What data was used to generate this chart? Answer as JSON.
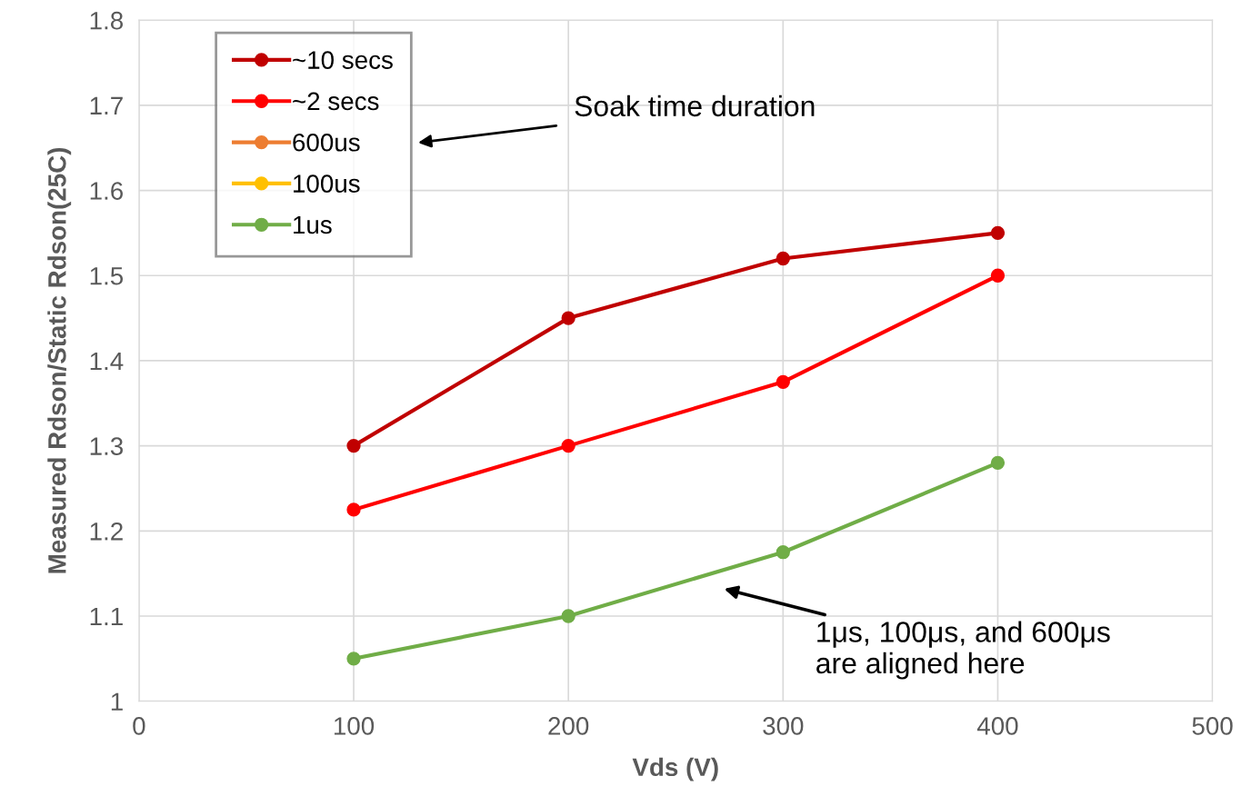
{
  "chart_data": {
    "type": "line",
    "xlabel": "Vds (V)",
    "ylabel": "Measured Rdson/Static Rdson(25C)",
    "x": [
      100,
      200,
      300,
      400
    ],
    "series": [
      {
        "name": "~10 secs",
        "color": "#c00000",
        "values": [
          1.3,
          1.45,
          1.52,
          1.55
        ]
      },
      {
        "name": "~2 secs",
        "color": "#ff0000",
        "values": [
          1.225,
          1.3,
          1.375,
          1.5
        ]
      },
      {
        "name": "600us",
        "color": "#ed7d31",
        "values": [
          null,
          null,
          null,
          null
        ]
      },
      {
        "name": "100us",
        "color": "#ffc000",
        "values": [
          null,
          null,
          null,
          null
        ]
      },
      {
        "name": "1us",
        "color": "#70ad47",
        "values": [
          1.05,
          1.1,
          1.175,
          1.28
        ]
      }
    ],
    "xlim": [
      0,
      500
    ],
    "xticks": [
      0,
      100,
      200,
      300,
      400,
      500
    ],
    "ylim": [
      1,
      1.8
    ],
    "yticks": [
      1,
      1.1,
      1.2,
      1.3,
      1.4,
      1.5,
      1.6,
      1.7,
      1.8
    ],
    "grid": true,
    "legend": "top left",
    "marker": "circle",
    "line_style": "solid",
    "annotations": [
      "Soak time duration",
      "1μs, 100μs, and 600μs\nare aligned here"
    ]
  }
}
